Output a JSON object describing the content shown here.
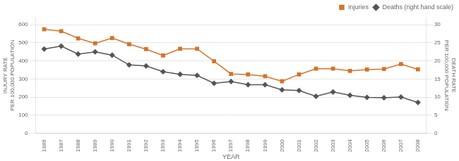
{
  "chart_data": {
    "type": "line",
    "x_label": "YEAR",
    "y_label": "INJURY RATE\nPER 100,000 POPULATION",
    "y2_label": "DEATH RATE\nPER 100,000 POPULATION",
    "x": [
      1986,
      1987,
      1988,
      1989,
      1990,
      1991,
      1992,
      1993,
      1994,
      1995,
      1996,
      1997,
      1998,
      1999,
      2000,
      2001,
      2002,
      2003,
      2004,
      2005,
      2006,
      2007,
      2008
    ],
    "series": [
      {
        "name": "Injuries",
        "color": "#d4742a",
        "marker": "square",
        "values": [
          575,
          565,
          525,
          497,
          527,
          493,
          465,
          430,
          467,
          467,
          398,
          328,
          325,
          315,
          287,
          325,
          357,
          357,
          345,
          352,
          355,
          383,
          353
        ]
      },
      {
        "name": "Deaths (right hand scale)",
        "color": "#555555",
        "marker": "diamond",
        "axis": "y2",
        "values": [
          23.3,
          24.1,
          21.9,
          22.5,
          21.6,
          18.9,
          18.6,
          17.0,
          16.3,
          16.0,
          13.8,
          14.3,
          13.4,
          13.4,
          12.0,
          11.8,
          10.2,
          11.4,
          10.5,
          9.9,
          9.8,
          10.0,
          8.5
        ]
      }
    ],
    "xlim": [
      1985.5,
      2008.5
    ],
    "xticks": [
      1986,
      1987,
      1988,
      1989,
      1990,
      1991,
      1992,
      1993,
      1994,
      1995,
      1996,
      1997,
      1998,
      1999,
      2000,
      2001,
      2002,
      2003,
      2004,
      2005,
      2006,
      2007,
      2008
    ],
    "ylim": [
      0,
      640
    ],
    "yticks": [
      0,
      100,
      200,
      300,
      400,
      500,
      600
    ],
    "y2lim": [
      0,
      32
    ],
    "y2ticks": [
      0,
      5,
      10,
      15,
      20,
      25,
      30
    ],
    "grid": true,
    "legend": "upper right"
  }
}
